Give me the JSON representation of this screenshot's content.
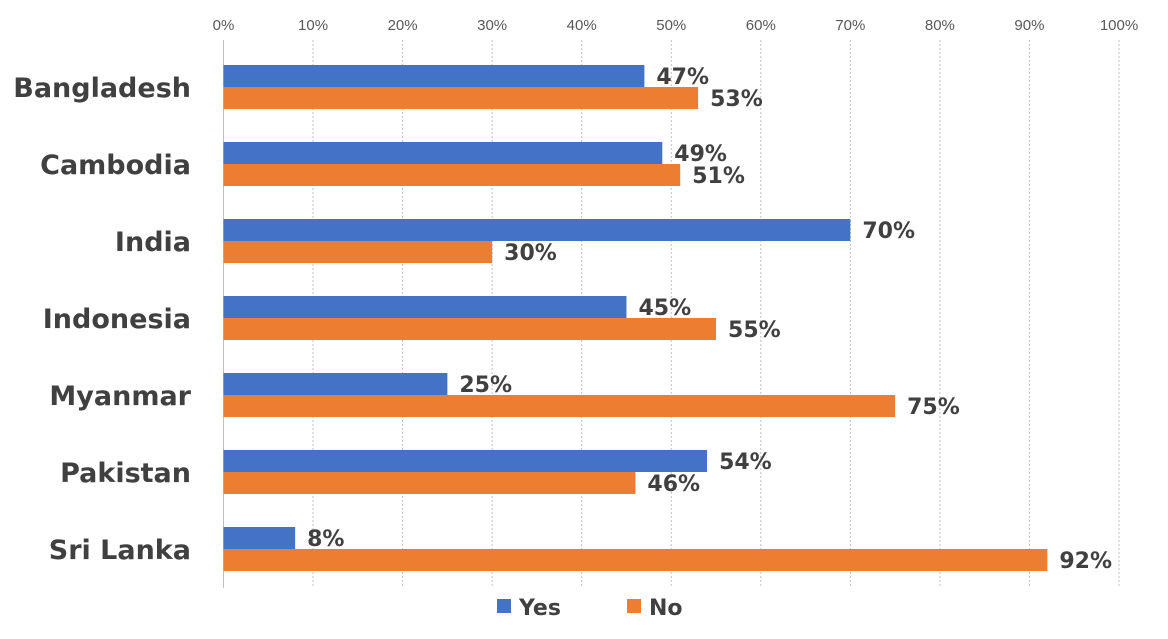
{
  "chart_data": {
    "type": "bar",
    "orientation": "horizontal",
    "title": "",
    "xlabel": "",
    "ylabel": "",
    "categories": [
      "Bangladesh",
      "Cambodia",
      "India",
      "Indonesia",
      "Myanmar",
      "Pakistan",
      "Sri Lanka"
    ],
    "series": [
      {
        "name": "Yes",
        "color": "#4472C4",
        "values": [
          47,
          49,
          70,
          45,
          25,
          54,
          8
        ]
      },
      {
        "name": "No",
        "color": "#ED7D31",
        "values": [
          53,
          51,
          30,
          55,
          75,
          46,
          92
        ]
      }
    ],
    "xlim": [
      0,
      100
    ],
    "x_ticks": [
      0,
      10,
      20,
      30,
      40,
      50,
      60,
      70,
      80,
      90,
      100
    ],
    "tick_suffix": "%",
    "data_label_suffix": "%",
    "axis_position": "top",
    "grid": true,
    "legend_position": "bottom"
  }
}
